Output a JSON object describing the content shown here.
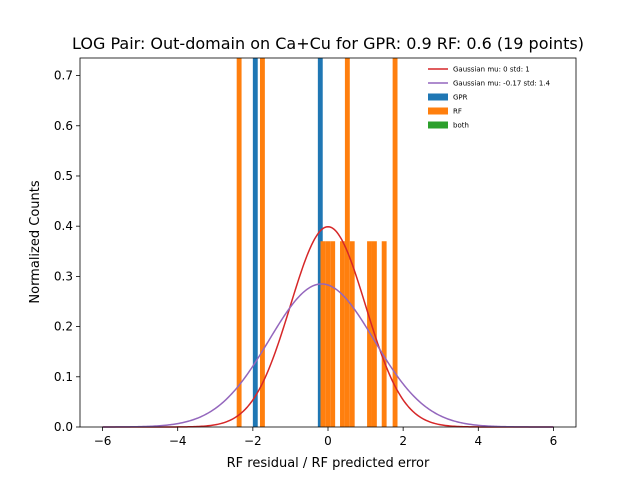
{
  "chart_data": {
    "type": "bar",
    "title": "LOG Pair: Out-domain on Ca+Cu for GPR: 0.9 RF: 0.6 (19 points)",
    "xlabel": "RF residual / RF predicted error",
    "ylabel": "Normalized Counts",
    "xlim": [
      -6.6,
      6.6
    ],
    "ylim": [
      0,
      0.735
    ],
    "grid": false,
    "legend_position": "top-right",
    "xticks": [
      -6,
      -4,
      -2,
      0,
      2,
      4,
      6
    ],
    "xtick_labels": [
      "−6",
      "−4",
      "−2",
      "0",
      "2",
      "4",
      "6"
    ],
    "yticks": [
      0.0,
      0.1,
      0.2,
      0.3,
      0.4,
      0.5,
      0.6,
      0.7
    ],
    "ytick_labels": [
      "0.0",
      "0.1",
      "0.2",
      "0.3",
      "0.4",
      "0.5",
      "0.6",
      "0.7"
    ],
    "histograms": [
      {
        "name": "GPR",
        "color": "#1f77b4",
        "bins": [
          {
            "x0": -2.0,
            "x1": -1.87,
            "value": 0.735
          },
          {
            "x0": -0.27,
            "x1": -0.14,
            "value": 0.735
          }
        ]
      },
      {
        "name": "RF",
        "color": "#ff7f0e",
        "bins": [
          {
            "x0": -2.43,
            "x1": -2.3,
            "value": 0.735
          },
          {
            "x0": -1.81,
            "x1": -1.68,
            "value": 0.735
          },
          {
            "x0": -0.2,
            "x1": -0.07,
            "value": 0.37
          },
          {
            "x0": -0.07,
            "x1": 0.06,
            "value": 0.37
          },
          {
            "x0": 0.06,
            "x1": 0.19,
            "value": 0.37
          },
          {
            "x0": 0.32,
            "x1": 0.45,
            "value": 0.37
          },
          {
            "x0": 0.45,
            "x1": 0.58,
            "value": 0.735
          },
          {
            "x0": 0.58,
            "x1": 0.71,
            "value": 0.37
          },
          {
            "x0": 1.04,
            "x1": 1.17,
            "value": 0.37
          },
          {
            "x0": 1.17,
            "x1": 1.3,
            "value": 0.37
          },
          {
            "x0": 1.43,
            "x1": 1.56,
            "value": 0.37
          },
          {
            "x0": 1.72,
            "x1": 1.85,
            "value": 0.735
          }
        ]
      },
      {
        "name": "both",
        "color": "#2ca02c",
        "bins": []
      }
    ],
    "curves": [
      {
        "name": "Gaussian mu: 0 std: 1",
        "color": "#d62728",
        "mu": 0,
        "std": 1,
        "x_range": [
          -6,
          6
        ]
      },
      {
        "name": "Gaussian mu: -0.17 std: 1.4",
        "color": "#9467bd",
        "mu": -0.17,
        "std": 1.4,
        "x_range": [
          -6,
          6
        ]
      }
    ],
    "legend": [
      {
        "label": "Gaussian mu: 0 std: 1",
        "kind": "line",
        "color": "#d62728"
      },
      {
        "label": "Gaussian mu: -0.17 std: 1.4",
        "kind": "line",
        "color": "#9467bd"
      },
      {
        "label": "GPR",
        "kind": "patch",
        "color": "#1f77b4"
      },
      {
        "label": "RF",
        "kind": "patch",
        "color": "#ff7f0e"
      },
      {
        "label": "both",
        "kind": "patch",
        "color": "#2ca02c"
      }
    ]
  }
}
